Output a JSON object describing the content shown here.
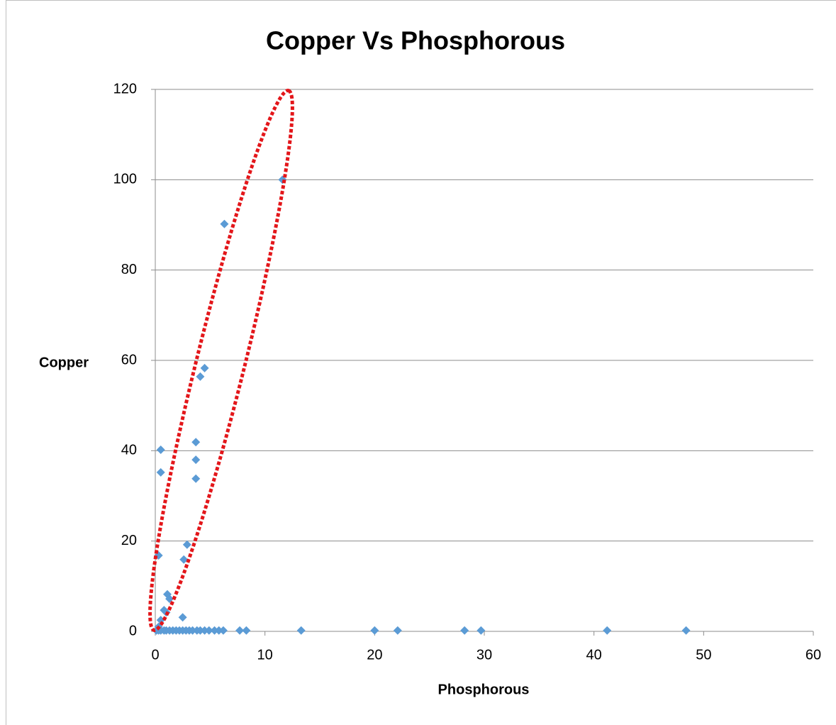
{
  "chart_data": {
    "type": "scatter",
    "title": "Copper Vs Phosphorous",
    "x_label": "Phosphorous",
    "y_label": "Copper",
    "x": [
      11.6,
      6.3,
      4.5,
      4.1,
      3.7,
      3.7,
      3.7,
      0.5,
      0.5,
      0.3,
      2.9,
      2.6,
      1.1,
      1.3,
      2.5,
      0.8,
      1.0,
      0.5,
      0.3,
      0.1,
      0.3,
      0.5,
      0.8,
      1.0,
      1.3,
      1.6,
      1.9,
      2.2,
      2.5,
      2.8,
      3.1,
      3.4,
      3.8,
      4.1,
      4.5,
      4.9,
      5.4,
      5.8,
      6.2,
      7.7,
      8.3,
      13.3,
      20.0,
      22.1,
      28.2,
      29.7,
      41.2,
      48.4
    ],
    "y": [
      100,
      90.2,
      58.3,
      56.4,
      41.9,
      38,
      33.8,
      40.2,
      35.2,
      16.8,
      19.2,
      15.9,
      8.2,
      7.2,
      3.1,
      4.7,
      4.2,
      2.5,
      1,
      0.2,
      0.2,
      0.2,
      0.2,
      0.2,
      0.2,
      0.2,
      0.2,
      0.2,
      0.2,
      0.2,
      0.2,
      0.2,
      0.2,
      0.2,
      0.2,
      0.2,
      0.2,
      0.2,
      0.2,
      0.2,
      0.2,
      0.2,
      0.2,
      0.2,
      0.2,
      0.2,
      0.2,
      0.2
    ],
    "color": "#5b9bd5",
    "marker": "diamond",
    "xlim": [
      0,
      60
    ],
    "ylim": [
      0,
      120
    ],
    "xticks": [
      0,
      10,
      20,
      30,
      40,
      50,
      60
    ],
    "yticks": [
      0,
      20,
      40,
      60,
      80,
      100,
      120
    ],
    "grid": true
  }
}
